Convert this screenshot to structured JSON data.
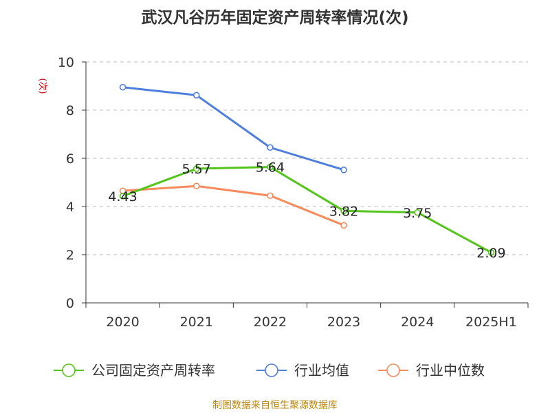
{
  "chart_data": {
    "type": "line",
    "title": "武汉凡谷历年固定资产周转率情况(次)",
    "ylabel": "(次)",
    "xlabel": "",
    "categories": [
      "2020",
      "2021",
      "2022",
      "2023",
      "2024",
      "2025H1"
    ],
    "ylim": [
      0,
      10
    ],
    "yticks": [
      0,
      2,
      4,
      6,
      8,
      10
    ],
    "grid": true,
    "legend_position": "bottom",
    "series": [
      {
        "name": "公司固定资产周转率",
        "color": "#52c41a",
        "values": [
          4.43,
          5.57,
          5.64,
          3.82,
          3.75,
          2.09
        ],
        "labels": [
          "4.43",
          "5.57",
          "5.64",
          "3.82",
          "3.75",
          "2.09"
        ]
      },
      {
        "name": "行业均值",
        "color": "#4e7fde",
        "values": [
          8.95,
          8.62,
          6.45,
          5.52,
          null,
          null
        ]
      },
      {
        "name": "行业中位数",
        "color": "#f78b5b",
        "values": [
          4.65,
          4.85,
          4.45,
          3.22,
          null,
          null
        ]
      }
    ]
  },
  "source_note": "制图数据来自恒生聚源数据库"
}
